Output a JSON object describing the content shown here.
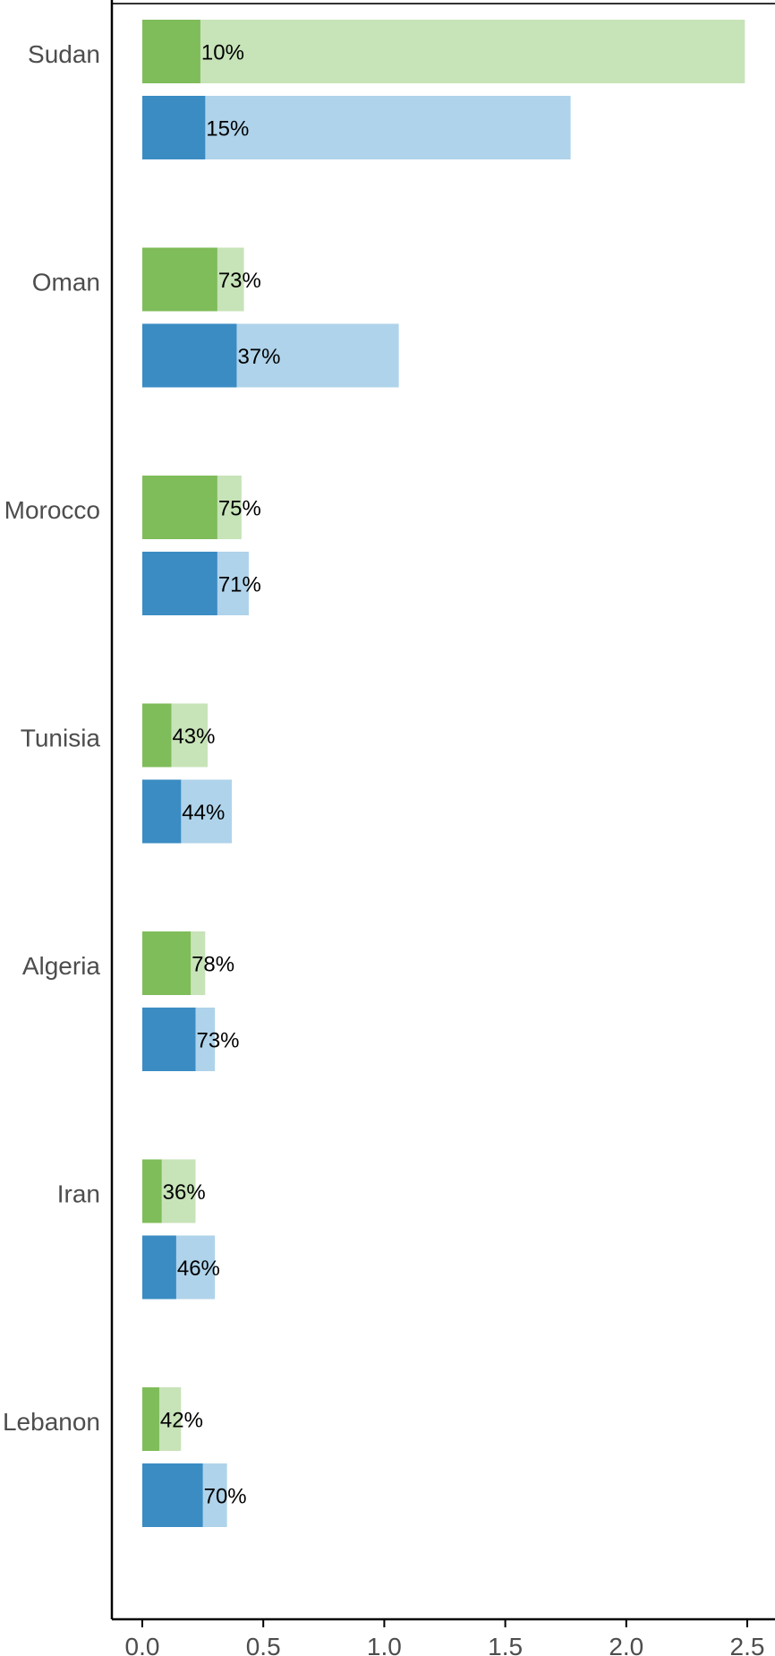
{
  "chart_data": {
    "type": "bar",
    "orientation": "horizontal",
    "categories": [
      "Sudan",
      "Oman",
      "Morocco",
      "Tunisia",
      "Algeria",
      "Iran",
      "Lebanon"
    ],
    "series": [
      {
        "color_total": "#c7e3b8",
        "color_part": "#7fbc5a",
        "totals": [
          2.49,
          0.42,
          0.41,
          0.27,
          0.26,
          0.22,
          0.16
        ],
        "parts": [
          0.24,
          0.31,
          0.31,
          0.12,
          0.2,
          0.08,
          0.07
        ],
        "labels": [
          "10%",
          "73%",
          "75%",
          "43%",
          "78%",
          "36%",
          "42%"
        ]
      },
      {
        "color_total": "#afd3ea",
        "color_part": "#3a8cc3",
        "totals": [
          1.77,
          1.06,
          0.44,
          0.37,
          0.3,
          0.3,
          0.35
        ],
        "parts": [
          0.26,
          0.39,
          0.31,
          0.16,
          0.22,
          0.14,
          0.25
        ],
        "labels": [
          "15%",
          "37%",
          "71%",
          "44%",
          "73%",
          "46%",
          "70%"
        ]
      }
    ],
    "xlim": [
      0,
      2.5
    ],
    "xticks": [
      "0.0",
      "0.5",
      "1.0",
      "1.5",
      "2.0",
      "2.5"
    ],
    "xlabel": "",
    "ylabel": "",
    "title": "",
    "grid": false
  }
}
